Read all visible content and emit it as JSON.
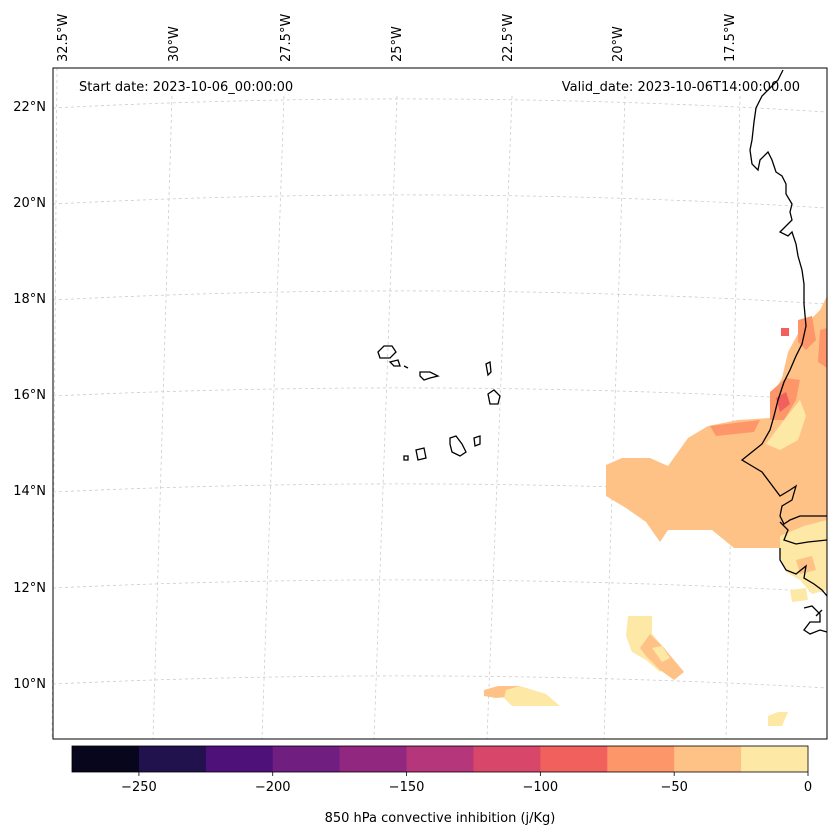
{
  "header": {
    "start_date": "Start date: 2023-10-06_00:00:00",
    "valid_date": "Valid_date: 2023-10-06T14:00:00.00"
  },
  "longitude_labels": [
    "32.5°W",
    "30°W",
    "27.5°W",
    "25°W",
    "22.5°W",
    "20°W",
    "17.5°W"
  ],
  "latitude_labels": [
    "22°N",
    "20°N",
    "18°N",
    "16°N",
    "14°N",
    "12°N",
    "10°N"
  ],
  "colorbar": {
    "label": "850 hPa convective inhibition (j/Kg)",
    "ticks": [
      "−250",
      "−200",
      "−150",
      "−100",
      "−50",
      "0"
    ],
    "tick_values": [
      -250,
      -200,
      -150,
      -100,
      -50,
      0
    ],
    "min": -275,
    "max": 0,
    "bins": [
      {
        "from": -275,
        "to": -250,
        "color": "#07061c"
      },
      {
        "from": -250,
        "to": -225,
        "color": "#21114d"
      },
      {
        "from": -225,
        "to": -200,
        "color": "#4e117a"
      },
      {
        "from": -200,
        "to": -175,
        "color": "#701f81"
      },
      {
        "from": -175,
        "to": -150,
        "color": "#92277f"
      },
      {
        "from": -150,
        "to": -125,
        "color": "#b5367a"
      },
      {
        "from": -125,
        "to": -100,
        "color": "#d84769"
      },
      {
        "from": -100,
        "to": -75,
        "color": "#f1605d"
      },
      {
        "from": -75,
        "to": -50,
        "color": "#fd9668"
      },
      {
        "from": -50,
        "to": -25,
        "color": "#fec287"
      },
      {
        "from": -25,
        "to": 0,
        "color": "#fde8a6"
      }
    ]
  },
  "colors": {
    "gridline": "#cccccc",
    "coastline": "#000000",
    "cin_0_to_minus25": "#fde8a6",
    "cin_minus25_to_minus50": "#fec287",
    "cin_minus50_to_minus75": "#fd9668",
    "cin_minus75_to_minus100": "#f1605d"
  }
}
